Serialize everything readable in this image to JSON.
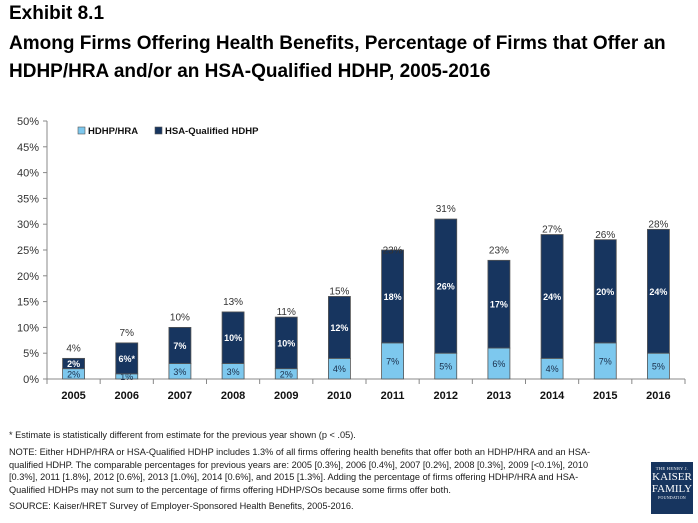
{
  "header": {
    "exhibit": "Exhibit 8.1",
    "title": "Among Firms Offering Health Benefits, Percentage of Firms that Offer an HDHP/HRA and/or an HSA-Qualified HDHP, 2005-2016"
  },
  "chart_data": {
    "type": "bar",
    "stacked": true,
    "title": "Among Firms Offering Health Benefits, Percentage of Firms that Offer an HDHP/HRA and/or an HSA-Qualified HDHP, 2005-2016",
    "xlabel": "",
    "ylabel": "",
    "ylim": [
      0,
      50
    ],
    "yticks": [
      "0%",
      "5%",
      "10%",
      "15%",
      "20%",
      "25%",
      "30%",
      "35%",
      "40%",
      "45%",
      "50%"
    ],
    "yticks_values": [
      0,
      5,
      10,
      15,
      20,
      25,
      30,
      35,
      40,
      45,
      50
    ],
    "grid": false,
    "legend_position": "top-left",
    "categories": [
      "2005",
      "2006",
      "2007",
      "2008",
      "2009",
      "2010",
      "2011",
      "2012",
      "2013",
      "2014",
      "2015",
      "2016"
    ],
    "series": [
      {
        "name": "HDHP/HRA",
        "color": "#7dc8ee",
        "values": [
          2,
          1,
          3,
          3,
          2,
          4,
          7,
          5,
          6,
          4,
          7,
          5
        ],
        "labels": [
          "2%",
          "1%",
          "3%",
          "3%",
          "2%",
          "4%",
          "7%",
          "5%",
          "6%",
          "4%",
          "7%",
          "5%"
        ]
      },
      {
        "name": "HSA-Qualified HDHP",
        "color": "#17355f",
        "values": [
          2,
          6,
          7,
          10,
          10,
          12,
          18,
          26,
          17,
          24,
          20,
          24
        ],
        "labels": [
          "2%",
          "6%*",
          "7%",
          "10%",
          "10%",
          "12%",
          "18%",
          "26%",
          "17%",
          "24%",
          "20%",
          "24%"
        ]
      }
    ],
    "totals": [
      4,
      7,
      10,
      13,
      11,
      15,
      23,
      31,
      23,
      27,
      26,
      28
    ],
    "total_labels": [
      "4%",
      "7%",
      "10%",
      "13%",
      "11%",
      "15%",
      "23%",
      "31%",
      "23%",
      "27%",
      "26%",
      "28%"
    ]
  },
  "footnotes": {
    "star": "* Estimate is statistically different from estimate for the previous year shown (p < .05).",
    "note": "NOTE:  Either HDHP/HRA or HSA-Qualified HDHP includes 1.3% of all firms offering health benefits that offer both an HDHP/HRA and an HSA-qualified HDHP. The comparable percentages for previous years are: 2005 [0.3%], 2006 [0.4%], 2007 [0.2%], 2008 [0.3%], 2009 [<0.1%], 2010 [0.3%], 2011 [1.8%], 2012 [0.6%], 2013 [1.0%], 2014 [0.6%], and 2015 [1.3%]. Adding the percentage of firms offering HDHP/HRA and HSA-Qualified HDHPs may not sum to the percentage of firms offering HDHP/SOs because some firms offer both.",
    "source": "SOURCE:  Kaiser/HRET Survey of Employer-Sponsored Health Benefits, 2005-2016."
  },
  "logo": {
    "line1": "THE HENRY J.",
    "line2": "KAISER",
    "line3": "FAMILY",
    "line4": "FOUNDATION"
  }
}
